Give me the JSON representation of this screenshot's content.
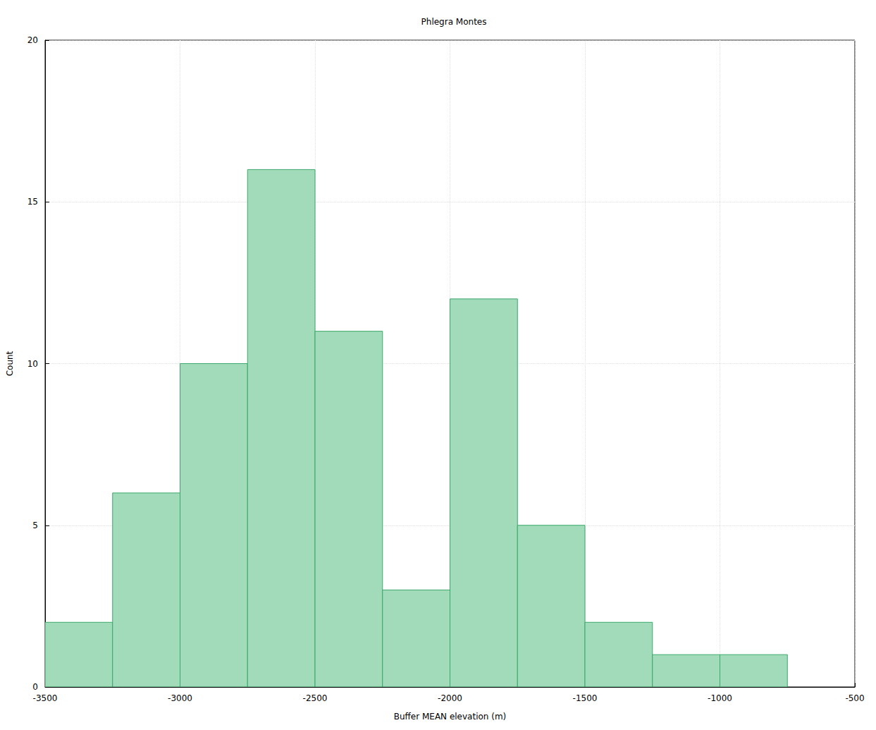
{
  "chart_data": {
    "type": "histogram",
    "title": "Phlegra Montes",
    "x_label": "Buffer MEAN elevation (m)",
    "y_label": "Count",
    "bins": [
      -3500,
      -3250,
      -3000,
      -2750,
      -2500,
      -2250,
      -2000,
      -1750,
      -1500,
      -1250,
      -1000,
      -750
    ],
    "values": [
      2,
      6,
      10,
      16,
      11,
      3,
      12,
      5,
      2,
      1,
      1
    ],
    "color": "#a2dbb9",
    "xlim": [
      -3500,
      -500
    ],
    "xticks": [
      -3500,
      -3000,
      -2500,
      -2000,
      -1500,
      -1000,
      -500
    ],
    "ylim": [
      0,
      20
    ],
    "yticks": [
      0,
      5,
      10,
      15,
      20
    ],
    "grid": true
  }
}
